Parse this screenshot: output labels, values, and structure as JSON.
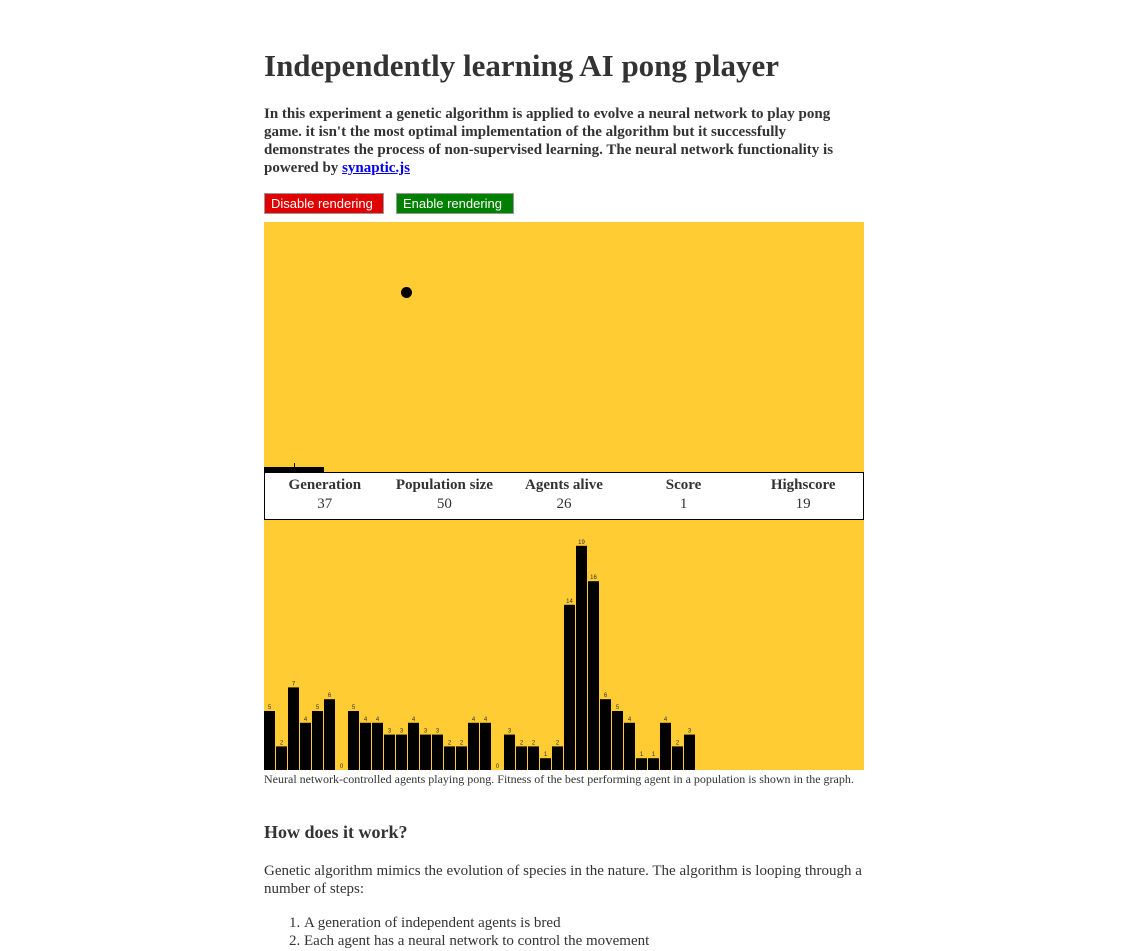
{
  "title": "Independently learning AI pong player",
  "intro": {
    "text": "In this experiment a genetic algorithm is applied to evolve a neural network to play pong game. it isn't the most optimal implementation of the algorithm but it successfully demonstrates the process of non-supervised learning. The neural network functionality is powered by ",
    "link_text": "synaptic.js"
  },
  "buttons": {
    "disable_label": "Disable rendering",
    "enable_label": "Enable rendering",
    "disable_color": "#e00000",
    "enable_color": "#008000"
  },
  "game": {
    "background": "#ffcc33"
  },
  "stats": {
    "generation_label": "Generation",
    "generation_value": "37",
    "population_label": "Population size",
    "population_value": "50",
    "alive_label": "Agents alive",
    "alive_value": "26",
    "score_label": "Score",
    "score_value": "1",
    "highscore_label": "Highscore",
    "highscore_value": "19"
  },
  "chart_data": {
    "type": "bar",
    "title": "",
    "xlabel": "",
    "ylabel": "",
    "ylim": [
      0,
      21
    ],
    "values": [
      5,
      2,
      7,
      4,
      5,
      6,
      0,
      5,
      4,
      4,
      3,
      3,
      4,
      3,
      3,
      2,
      2,
      4,
      4,
      0,
      3,
      2,
      2,
      1,
      2,
      14,
      19,
      16,
      6,
      5,
      4,
      1,
      1,
      4,
      2,
      3
    ],
    "bar_color": "#000000",
    "background": "#ffcc33"
  },
  "caption": "Neural network-controlled agents playing pong. Fitness of the best performing agent in a population is shown in the graph.",
  "section": {
    "heading": "How does it work?",
    "paragraph": "Genetic algorithm mimics the evolution of species in the nature. The algorithm is looping through a number of steps:",
    "steps": [
      "A generation of independent agents is bred",
      "Each agent has a neural network to control the movement"
    ]
  }
}
